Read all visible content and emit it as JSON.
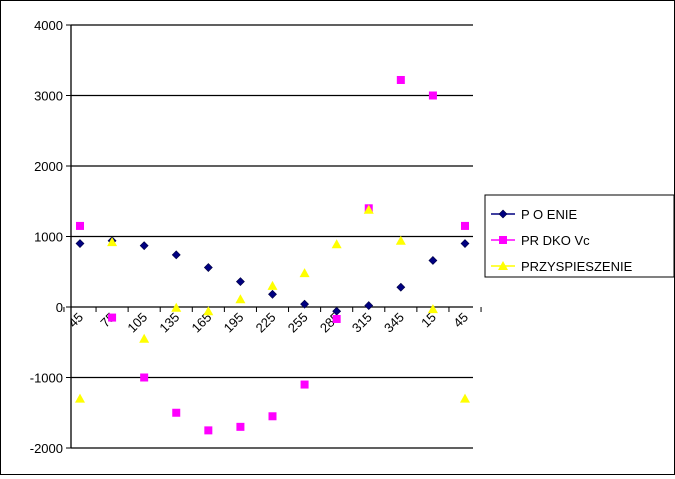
{
  "chart_data": {
    "type": "scatter",
    "title": "",
    "xlabel": "",
    "ylabel": "",
    "categories": [
      "45",
      "75",
      "105",
      "135",
      "165",
      "195",
      "225",
      "255",
      "285",
      "315",
      "345",
      "15",
      "45"
    ],
    "ylim": [
      -2000,
      4000
    ],
    "yticks": [
      4000,
      3000,
      2000,
      1000,
      0,
      -1000,
      -2000
    ],
    "grid": "horizontal",
    "legend_position": "right",
    "series": [
      {
        "name": "P O ENIE",
        "color": "#000080",
        "marker": "diamond",
        "values": [
          900,
          940,
          870,
          740,
          560,
          360,
          180,
          40,
          -60,
          20,
          280,
          660,
          900
        ]
      },
      {
        "name": "PR DKO Vc",
        "color": "#ff00ff",
        "marker": "square",
        "values": [
          1150,
          -150,
          -1000,
          -1500,
          -1750,
          -1700,
          -1550,
          -1100,
          -170,
          1400,
          3220,
          3000,
          1150
        ]
      },
      {
        "name": "PRZYSPIESZENIE",
        "color": "#ffff00",
        "marker": "triangle",
        "values": [
          -1300,
          920,
          -450,
          -10,
          -60,
          110,
          300,
          480,
          890,
          1380,
          940,
          -30,
          -1300
        ]
      }
    ]
  }
}
